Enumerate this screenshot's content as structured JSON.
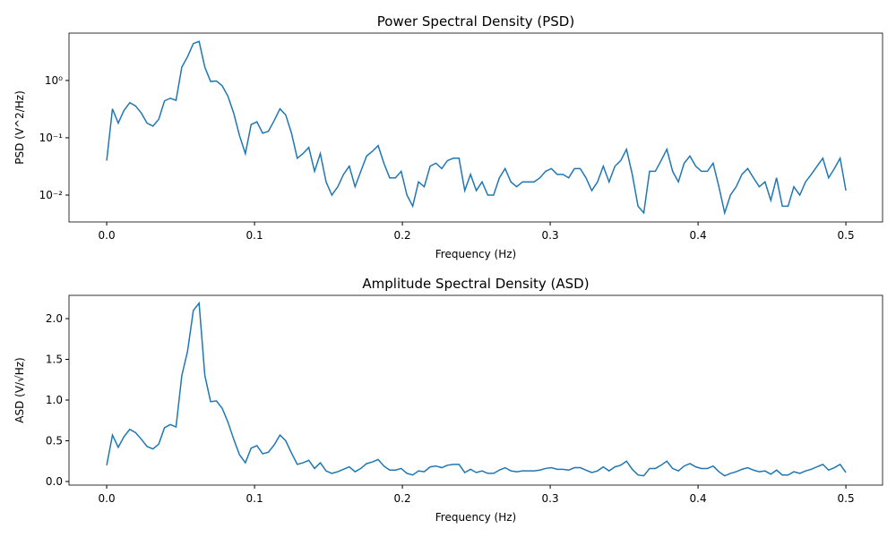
{
  "chart_data": [
    {
      "type": "line",
      "title": "Power Spectral Density (PSD)",
      "x_label": "Frequency (Hz)",
      "y_label": "PSD (V^2/Hz)",
      "log_y": true,
      "xlim": [
        -0.0255,
        0.5248
      ],
      "xticks": [
        {
          "value": 0,
          "label": "0.0"
        },
        0.1,
        0.2,
        0.3,
        0.4,
        0.5
      ],
      "ylim": [
        0.0034,
        6.7
      ],
      "yticks": [
        {
          "value": 0.01,
          "label": "10⁻²"
        },
        {
          "value": 0.1,
          "label": "10⁻¹"
        },
        {
          "value": 1,
          "label": "10⁰"
        }
      ],
      "series": [
        {
          "color": "#1f77b4",
          "x": [
            0,
            0.0039,
            0.0078,
            0.0117,
            0.0156,
            0.0195,
            0.0234,
            0.0273,
            0.0313,
            0.0352,
            0.0391,
            0.043,
            0.0469,
            0.0508,
            0.0547,
            0.0586,
            0.0625,
            0.0664,
            0.0703,
            0.0742,
            0.0781,
            0.082,
            0.0859,
            0.0898,
            0.0938,
            0.0977,
            0.1016,
            0.1055,
            0.1094,
            0.1133,
            0.1172,
            0.1211,
            0.125,
            0.1289,
            0.1328,
            0.1367,
            0.1406,
            0.1445,
            0.1484,
            0.1523,
            0.1563,
            0.1602,
            0.1641,
            0.168,
            0.1719,
            0.1758,
            0.1797,
            0.1836,
            0.1875,
            0.1914,
            0.1953,
            0.1992,
            0.2031,
            0.207,
            0.2109,
            0.2148,
            0.2188,
            0.2227,
            0.2266,
            0.2305,
            0.2344,
            0.2383,
            0.2422,
            0.2461,
            0.25,
            0.2539,
            0.2578,
            0.2617,
            0.2656,
            0.2695,
            0.2734,
            0.2773,
            0.2813,
            0.2852,
            0.2891,
            0.293,
            0.2969,
            0.3008,
            0.3047,
            0.3086,
            0.3125,
            0.3164,
            0.3203,
            0.3242,
            0.3281,
            0.332,
            0.3359,
            0.3398,
            0.3438,
            0.3477,
            0.3516,
            0.3555,
            0.3594,
            0.3633,
            0.3672,
            0.3711,
            0.375,
            0.3789,
            0.3828,
            0.3867,
            0.3906,
            0.3945,
            0.3984,
            0.4023,
            0.4063,
            0.4102,
            0.4141,
            0.418,
            0.4219,
            0.4258,
            0.4297,
            0.4336,
            0.4375,
            0.4414,
            0.4453,
            0.4492,
            0.4531,
            0.457,
            0.4609,
            0.4648,
            0.4688,
            0.4727,
            0.4766,
            0.4805,
            0.4844,
            0.4883,
            0.4922,
            0.4961,
            0.5
          ],
          "values": [
            0.04,
            0.32,
            0.18,
            0.3,
            0.41,
            0.36,
            0.27,
            0.18,
            0.16,
            0.21,
            0.44,
            0.49,
            0.45,
            1.7,
            2.6,
            4.4,
            4.8,
            1.7,
            0.96,
            0.98,
            0.81,
            0.53,
            0.27,
            0.11,
            0.053,
            0.17,
            0.19,
            0.12,
            0.13,
            0.2,
            0.32,
            0.25,
            0.12,
            0.044,
            0.053,
            0.068,
            0.026,
            0.053,
            0.017,
            0.01,
            0.014,
            0.023,
            0.032,
            0.014,
            0.026,
            0.048,
            0.058,
            0.073,
            0.036,
            0.02,
            0.02,
            0.026,
            0.01,
            0.0064,
            0.017,
            0.014,
            0.032,
            0.036,
            0.029,
            0.04,
            0.044,
            0.044,
            0.012,
            0.023,
            0.012,
            0.017,
            0.01,
            0.01,
            0.02,
            0.029,
            0.017,
            0.014,
            0.017,
            0.017,
            0.017,
            0.02,
            0.026,
            0.029,
            0.023,
            0.023,
            0.02,
            0.029,
            0.029,
            0.02,
            0.012,
            0.017,
            0.032,
            0.017,
            0.032,
            0.04,
            0.063,
            0.023,
            0.0064,
            0.0049,
            0.026,
            0.026,
            0.04,
            0.063,
            0.026,
            0.017,
            0.036,
            0.048,
            0.032,
            0.026,
            0.026,
            0.036,
            0.014,
            0.0049,
            0.01,
            0.014,
            0.023,
            0.029,
            0.02,
            0.014,
            0.017,
            0.0081,
            0.02,
            0.0064,
            0.0064,
            0.014,
            0.01,
            0.017,
            0.023,
            0.032,
            0.044,
            0.02,
            0.029,
            0.044,
            0.012
          ]
        }
      ]
    },
    {
      "type": "line",
      "title": "Amplitude Spectral Density (ASD)",
      "x_label": "Frequency (Hz)",
      "y_label": "ASD (V/√Hz)",
      "log_y": false,
      "xlim": [
        -0.0255,
        0.5248
      ],
      "xticks": [
        {
          "value": 0,
          "label": "0.0"
        },
        0.1,
        0.2,
        0.3,
        0.4,
        0.5
      ],
      "ylim": [
        -0.044,
        2.286
      ],
      "yticks": [
        {
          "value": 0,
          "label": "0.0"
        },
        0.5,
        {
          "value": 1,
          "label": "1.0"
        },
        1.5,
        {
          "value": 2,
          "label": "2.0"
        }
      ],
      "series": [
        {
          "color": "#1f77b4",
          "x": [
            0,
            0.0039,
            0.0078,
            0.0117,
            0.0156,
            0.0195,
            0.0234,
            0.0273,
            0.0313,
            0.0352,
            0.0391,
            0.043,
            0.0469,
            0.0508,
            0.0547,
            0.0586,
            0.0625,
            0.0664,
            0.0703,
            0.0742,
            0.0781,
            0.082,
            0.0859,
            0.0898,
            0.0938,
            0.0977,
            0.1016,
            0.1055,
            0.1094,
            0.1133,
            0.1172,
            0.1211,
            0.125,
            0.1289,
            0.1328,
            0.1367,
            0.1406,
            0.1445,
            0.1484,
            0.1523,
            0.1563,
            0.1602,
            0.1641,
            0.168,
            0.1719,
            0.1758,
            0.1797,
            0.1836,
            0.1875,
            0.1914,
            0.1953,
            0.1992,
            0.2031,
            0.207,
            0.2109,
            0.2148,
            0.2188,
            0.2227,
            0.2266,
            0.2305,
            0.2344,
            0.2383,
            0.2422,
            0.2461,
            0.25,
            0.2539,
            0.2578,
            0.2617,
            0.2656,
            0.2695,
            0.2734,
            0.2773,
            0.2813,
            0.2852,
            0.2891,
            0.293,
            0.2969,
            0.3008,
            0.3047,
            0.3086,
            0.3125,
            0.3164,
            0.3203,
            0.3242,
            0.3281,
            0.332,
            0.3359,
            0.3398,
            0.3438,
            0.3477,
            0.3516,
            0.3555,
            0.3594,
            0.3633,
            0.3672,
            0.3711,
            0.375,
            0.3789,
            0.3828,
            0.3867,
            0.3906,
            0.3945,
            0.3984,
            0.4023,
            0.4063,
            0.4102,
            0.4141,
            0.418,
            0.4219,
            0.4258,
            0.4297,
            0.4336,
            0.4375,
            0.4414,
            0.4453,
            0.4492,
            0.4531,
            0.457,
            0.4609,
            0.4648,
            0.4688,
            0.4727,
            0.4766,
            0.4805,
            0.4844,
            0.4883,
            0.4922,
            0.4961,
            0.5
          ],
          "values": [
            0.2,
            0.57,
            0.42,
            0.55,
            0.64,
            0.6,
            0.52,
            0.43,
            0.4,
            0.46,
            0.66,
            0.7,
            0.67,
            1.3,
            1.6,
            2.1,
            2.19,
            1.3,
            0.98,
            0.99,
            0.9,
            0.73,
            0.52,
            0.33,
            0.23,
            0.41,
            0.44,
            0.34,
            0.36,
            0.45,
            0.57,
            0.5,
            0.35,
            0.21,
            0.23,
            0.26,
            0.16,
            0.23,
            0.13,
            0.1,
            0.12,
            0.15,
            0.18,
            0.12,
            0.16,
            0.22,
            0.24,
            0.27,
            0.19,
            0.14,
            0.14,
            0.16,
            0.1,
            0.08,
            0.13,
            0.12,
            0.18,
            0.19,
            0.17,
            0.2,
            0.21,
            0.21,
            0.11,
            0.15,
            0.11,
            0.13,
            0.1,
            0.1,
            0.14,
            0.17,
            0.13,
            0.12,
            0.13,
            0.13,
            0.13,
            0.14,
            0.16,
            0.17,
            0.15,
            0.15,
            0.14,
            0.17,
            0.17,
            0.14,
            0.11,
            0.13,
            0.18,
            0.13,
            0.18,
            0.2,
            0.25,
            0.15,
            0.08,
            0.07,
            0.16,
            0.16,
            0.2,
            0.25,
            0.16,
            0.13,
            0.19,
            0.22,
            0.18,
            0.16,
            0.16,
            0.19,
            0.12,
            0.07,
            0.1,
            0.12,
            0.15,
            0.17,
            0.14,
            0.12,
            0.13,
            0.09,
            0.14,
            0.08,
            0.08,
            0.12,
            0.1,
            0.13,
            0.15,
            0.18,
            0.21,
            0.14,
            0.17,
            0.21,
            0.11
          ]
        }
      ]
    }
  ]
}
